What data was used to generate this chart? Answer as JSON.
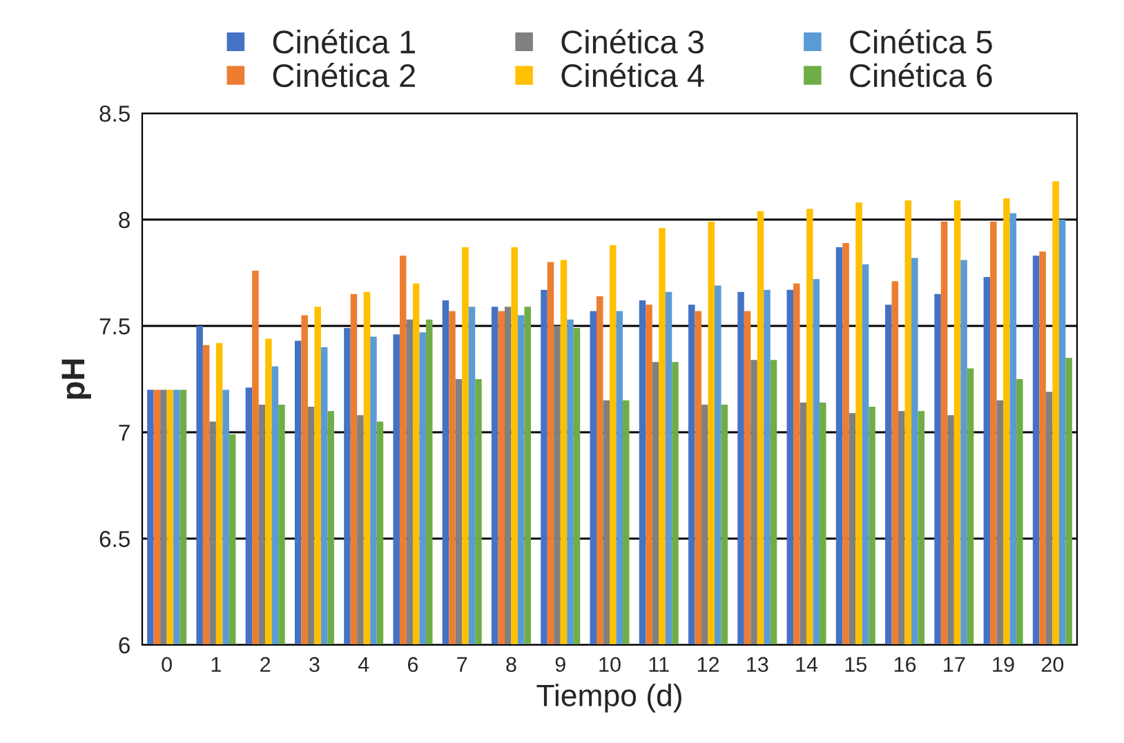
{
  "chart_data": {
    "type": "bar",
    "xlabel": "Tiempo (d)",
    "ylabel": "pH",
    "categories": [
      "0",
      "1",
      "2",
      "3",
      "4",
      "6",
      "7",
      "8",
      "9",
      "10",
      "11",
      "12",
      "13",
      "14",
      "15",
      "16",
      "17",
      "19",
      "20"
    ],
    "ylim": [
      6,
      8.5
    ],
    "yticks": [
      {
        "value": 6,
        "label": "6"
      },
      {
        "value": 6.5,
        "label": "6.5"
      },
      {
        "value": 7,
        "label": "7"
      },
      {
        "value": 7.5,
        "label": "7.5"
      },
      {
        "value": 8,
        "label": "8"
      },
      {
        "value": 8.5,
        "label": "8.5"
      }
    ],
    "grid": "y",
    "legend": "top",
    "series": [
      {
        "name": "Cinética 1",
        "color": "#4472c4",
        "values": [
          7.2,
          7.5,
          7.21,
          7.43,
          7.49,
          7.46,
          7.62,
          7.59,
          7.67,
          7.57,
          7.62,
          7.6,
          7.66,
          7.67,
          7.87,
          7.6,
          7.65,
          7.73,
          7.83
        ]
      },
      {
        "name": "Cinética 2",
        "color": "#ed7d31",
        "values": [
          7.2,
          7.41,
          7.76,
          7.55,
          7.65,
          7.83,
          7.57,
          7.57,
          7.8,
          7.64,
          7.6,
          7.57,
          7.57,
          7.7,
          7.89,
          7.71,
          7.99,
          7.99,
          7.85
        ]
      },
      {
        "name": "Cinética 3",
        "color": "#808080",
        "values": [
          7.2,
          7.05,
          7.13,
          7.12,
          7.08,
          7.53,
          7.25,
          7.59,
          7.5,
          7.15,
          7.33,
          7.13,
          7.34,
          7.14,
          7.09,
          7.1,
          7.08,
          7.15,
          7.19
        ]
      },
      {
        "name": "Cinética 4",
        "color": "#ffc000",
        "values": [
          7.2,
          7.42,
          7.44,
          7.59,
          7.66,
          7.7,
          7.87,
          7.87,
          7.81,
          7.88,
          7.96,
          7.99,
          8.04,
          8.05,
          8.08,
          8.09,
          8.09,
          8.1,
          8.18
        ]
      },
      {
        "name": "Cinética 5",
        "color": "#5b9bd5",
        "values": [
          7.2,
          7.2,
          7.31,
          7.4,
          7.45,
          7.47,
          7.59,
          7.55,
          7.53,
          7.57,
          7.66,
          7.69,
          7.67,
          7.72,
          7.79,
          7.82,
          7.81,
          8.03,
          8.0
        ]
      },
      {
        "name": "Cinética 6",
        "color": "#70ad47",
        "values": [
          7.2,
          6.99,
          7.13,
          7.1,
          7.05,
          7.53,
          7.25,
          7.59,
          7.49,
          7.15,
          7.33,
          7.13,
          7.34,
          7.14,
          7.12,
          7.1,
          7.3,
          7.25,
          7.35
        ]
      }
    ]
  }
}
